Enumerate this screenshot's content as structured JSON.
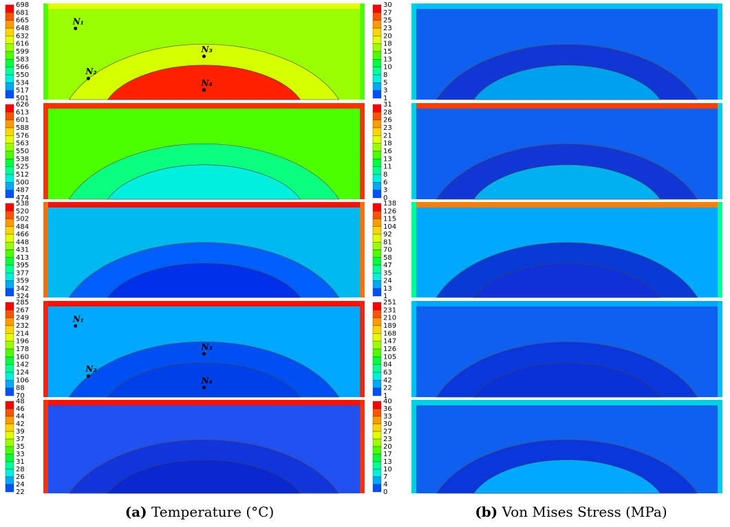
{
  "temperature": {
    "panels": [
      {
        "ticks": [
          698,
          681,
          665,
          648,
          632,
          616,
          599,
          583,
          566,
          550,
          534,
          517,
          501
        ],
        "nodes": [
          "N₁",
          "N₂",
          "N₃",
          "N₄"
        ]
      },
      {
        "ticks": [
          626,
          613,
          601,
          588,
          576,
          563,
          550,
          538,
          525,
          512,
          500,
          487,
          474
        ]
      },
      {
        "ticks": [
          538,
          520,
          502,
          484,
          466,
          448,
          431,
          413,
          395,
          377,
          359,
          342,
          324
        ]
      },
      {
        "ticks": [
          285,
          267,
          249,
          232,
          214,
          196,
          178,
          160,
          142,
          124,
          106,
          88,
          70
        ],
        "nodes": [
          "N₁",
          "N₂",
          "N₃",
          "N₄"
        ]
      },
      {
        "ticks": [
          48,
          46,
          44,
          42,
          39,
          37,
          35,
          33,
          31,
          28,
          26,
          24,
          22
        ]
      }
    ],
    "caption": {
      "label": "(a)",
      "text": "Temperature (°C)"
    }
  },
  "stress": {
    "panels": [
      {
        "ticks": [
          30,
          27,
          25,
          23,
          20,
          18,
          15,
          13,
          10,
          8,
          5,
          3,
          1
        ]
      },
      {
        "ticks": [
          31,
          28,
          26,
          23,
          21,
          18,
          16,
          13,
          11,
          8,
          6,
          3,
          0
        ]
      },
      {
        "ticks": [
          138,
          126,
          115,
          104,
          92,
          81,
          70,
          58,
          47,
          35,
          24,
          13,
          1
        ]
      },
      {
        "ticks": [
          251,
          231,
          210,
          189,
          168,
          147,
          126,
          105,
          84,
          63,
          42,
          22,
          1
        ]
      },
      {
        "ticks": [
          40,
          36,
          33,
          30,
          27,
          23,
          20,
          17,
          13,
          10,
          7,
          4,
          0
        ]
      }
    ],
    "caption": {
      "label": "(b)",
      "text": "Von Mises Stress (MPa)"
    }
  }
}
